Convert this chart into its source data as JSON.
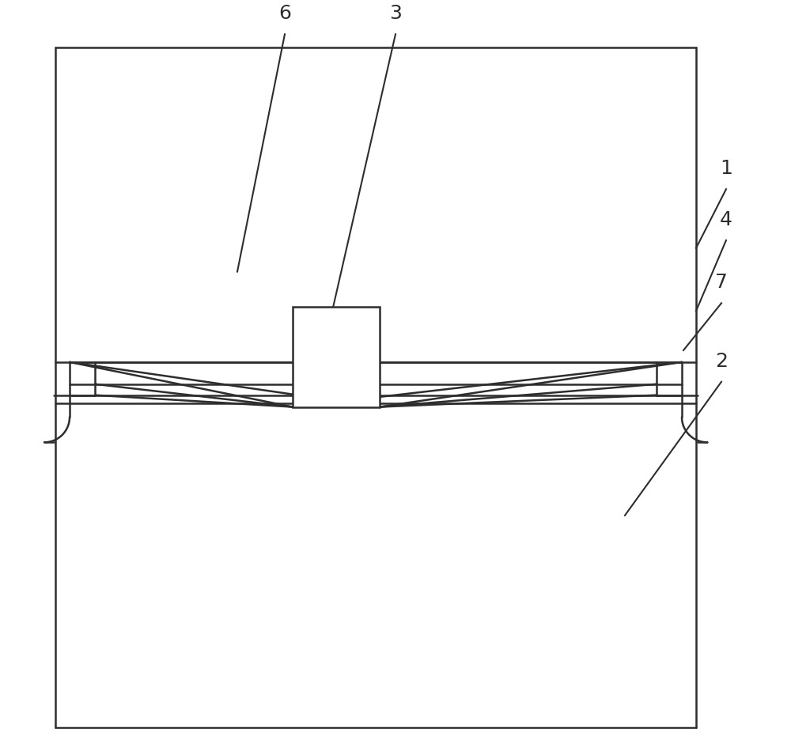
{
  "fig_width": 10.0,
  "fig_height": 9.56,
  "dpi": 100,
  "bg_color": "#ffffff",
  "line_color": "#2d2d2d",
  "line_width": 1.8,
  "label_fontsize": 18
}
